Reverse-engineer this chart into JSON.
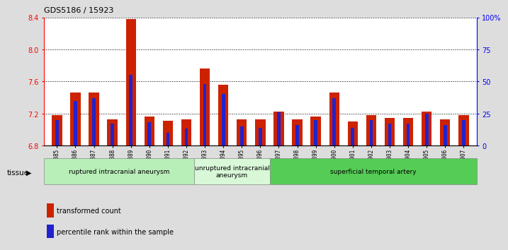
{
  "title": "GDS5186 / 15923",
  "samples": [
    "GSM1306885",
    "GSM1306886",
    "GSM1306887",
    "GSM1306888",
    "GSM1306889",
    "GSM1306890",
    "GSM1306891",
    "GSM1306892",
    "GSM1306893",
    "GSM1306894",
    "GSM1306895",
    "GSM1306896",
    "GSM1306897",
    "GSM1306898",
    "GSM1306899",
    "GSM1306900",
    "GSM1306901",
    "GSM1306902",
    "GSM1306903",
    "GSM1306904",
    "GSM1306905",
    "GSM1306906",
    "GSM1306907"
  ],
  "transformed_count": [
    7.18,
    7.46,
    7.46,
    7.13,
    8.38,
    7.16,
    7.11,
    7.13,
    7.76,
    7.56,
    7.13,
    7.13,
    7.22,
    7.13,
    7.16,
    7.46,
    7.1,
    7.18,
    7.14,
    7.14,
    7.22,
    7.13,
    7.18
  ],
  "percentile_rank": [
    20,
    35,
    37,
    17,
    55,
    18,
    10,
    13,
    48,
    40,
    15,
    14,
    26,
    16,
    20,
    37,
    14,
    20,
    17,
    17,
    25,
    16,
    20
  ],
  "ylim_left": [
    6.8,
    8.4
  ],
  "ylim_right": [
    0,
    100
  ],
  "yticks_left": [
    6.8,
    7.2,
    7.6,
    8.0,
    8.4
  ],
  "yticks_right": [
    0,
    25,
    50,
    75,
    100
  ],
  "ytick_labels_right": [
    "0",
    "25",
    "50",
    "75",
    "100%"
  ],
  "bar_color_red": "#cc2200",
  "bar_color_blue": "#2222cc",
  "groups": [
    {
      "label": "ruptured intracranial aneurysm",
      "start": 0,
      "end": 8,
      "color": "#b8eeb8"
    },
    {
      "label": "unruptured intracranial\naneurysm",
      "start": 8,
      "end": 12,
      "color": "#d8f8d8"
    },
    {
      "label": "superficial temporal artery",
      "start": 12,
      "end": 23,
      "color": "#55cc55"
    }
  ],
  "legend_red": "transformed count",
  "legend_blue": "percentile rank within the sample",
  "tissue_label": "tissue",
  "background_color": "#dddddd",
  "plot_bg": "#ffffff"
}
